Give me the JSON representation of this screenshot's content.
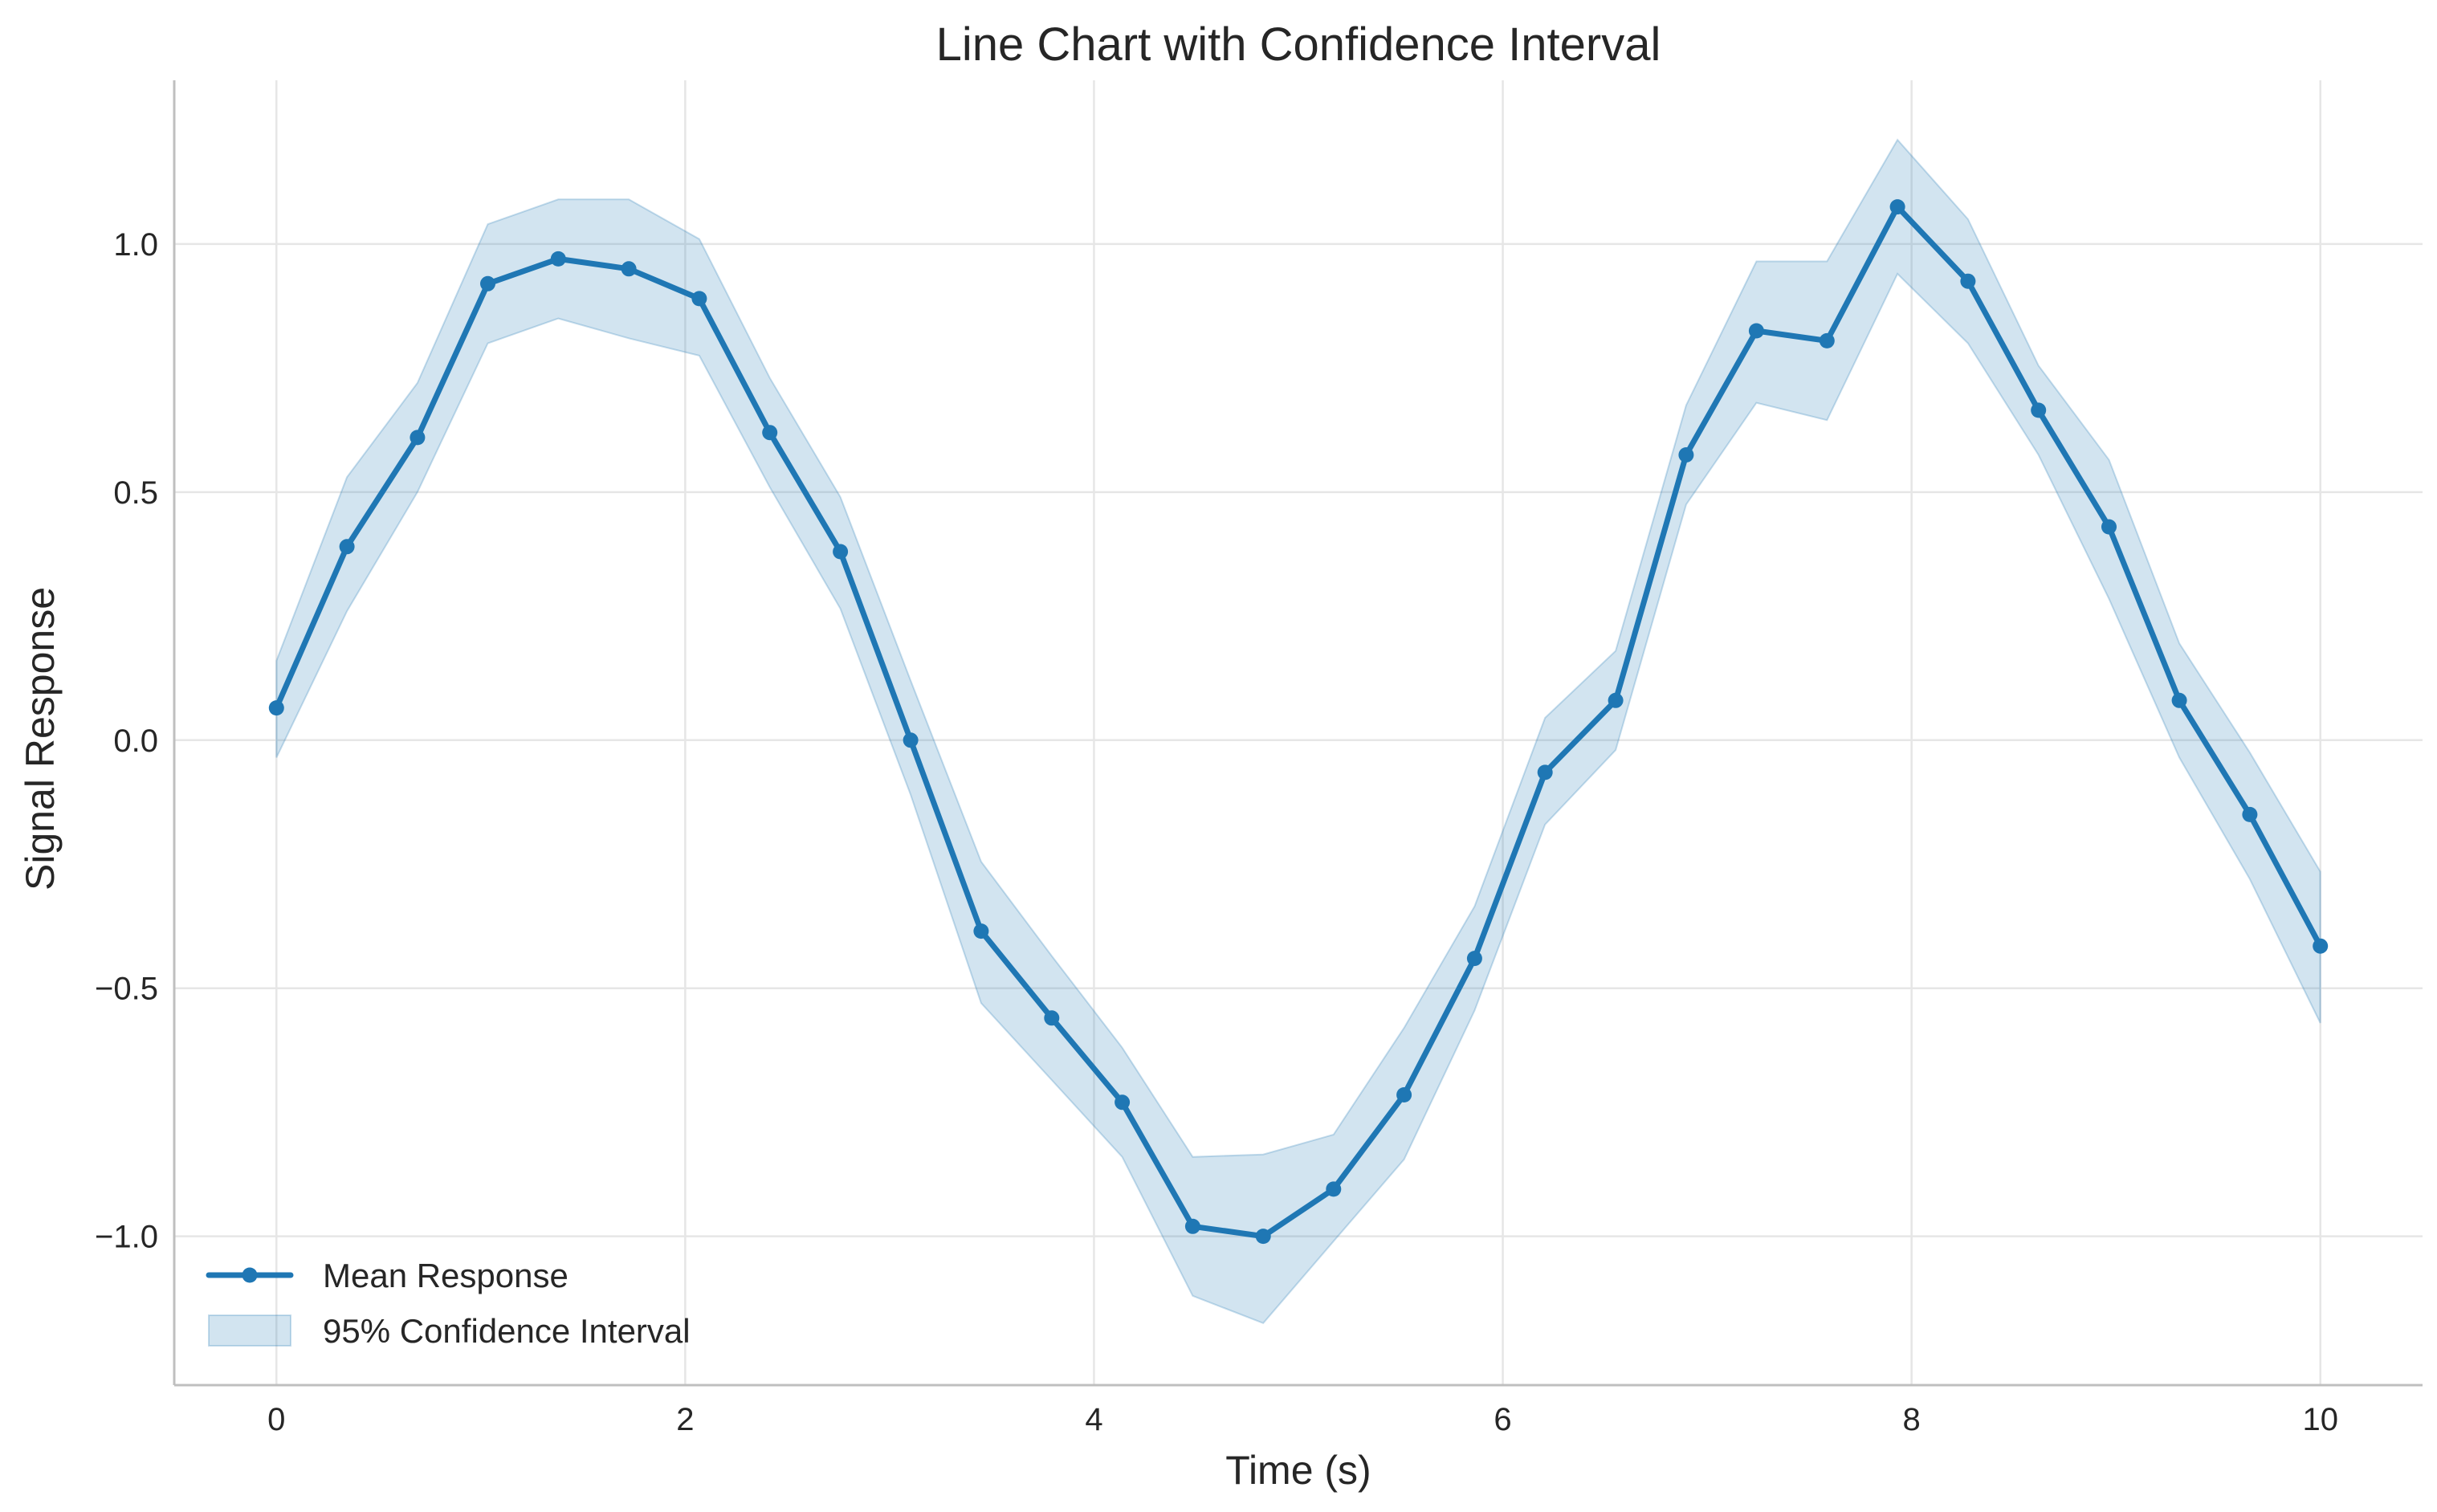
{
  "chart_data": {
    "type": "line",
    "title": "Line Chart with Confidence Interval",
    "xlabel": "Time (s)",
    "ylabel": "Signal Response",
    "xlim": [
      -0.5,
      10.5
    ],
    "ylim": [
      -1.3,
      1.33
    ],
    "xticks": [
      0,
      2,
      4,
      6,
      8,
      10
    ],
    "xtick_labels": [
      "0",
      "2",
      "4",
      "6",
      "8",
      "10"
    ],
    "yticks": [
      -1.0,
      -0.5,
      0.0,
      0.5,
      1.0
    ],
    "ytick_labels": [
      "−1.0",
      "−0.5",
      "0.0",
      "0.5",
      "1.0"
    ],
    "grid": true,
    "legend_position": "lower-left",
    "x": [
      0,
      0.345,
      0.69,
      1.034,
      1.379,
      1.724,
      2.069,
      2.414,
      2.759,
      3.103,
      3.448,
      3.793,
      4.138,
      4.483,
      4.828,
      5.172,
      5.517,
      5.862,
      6.207,
      6.552,
      6.897,
      7.241,
      7.586,
      7.931,
      8.276,
      8.621,
      8.966,
      9.31,
      9.655,
      10.0
    ],
    "series": [
      {
        "name": "Mean Response",
        "color": "#1f77b4",
        "marker": "circle",
        "values": [
          0.065,
          0.39,
          0.61,
          0.92,
          0.97,
          0.95,
          0.89,
          0.62,
          0.38,
          0.0,
          -0.385,
          -0.56,
          -0.73,
          -0.98,
          -1.0,
          -0.905,
          -0.715,
          -0.44,
          -0.065,
          0.08,
          0.575,
          0.825,
          0.805,
          1.075,
          0.925,
          0.665,
          0.43,
          0.08,
          -0.15,
          -0.415
        ]
      }
    ],
    "confidence_interval": {
      "name": "95% Confidence Interval",
      "color": "#1f77b4",
      "opacity": 0.2,
      "lower": [
        -0.035,
        0.26,
        0.5,
        0.8,
        0.85,
        0.81,
        0.775,
        0.51,
        0.265,
        -0.11,
        -0.53,
        -0.685,
        -0.84,
        -1.12,
        -1.175,
        -1.01,
        -0.845,
        -0.545,
        -0.17,
        -0.02,
        0.475,
        0.68,
        0.645,
        0.94,
        0.8,
        0.575,
        0.285,
        -0.035,
        -0.28,
        -0.57
      ],
      "upper": [
        0.16,
        0.53,
        0.72,
        1.04,
        1.09,
        1.09,
        1.01,
        0.73,
        0.49,
        0.12,
        -0.245,
        -0.435,
        -0.62,
        -0.84,
        -0.835,
        -0.795,
        -0.58,
        -0.335,
        0.045,
        0.18,
        0.675,
        0.965,
        0.965,
        1.21,
        1.05,
        0.755,
        0.565,
        0.195,
        -0.025,
        -0.265
      ]
    }
  }
}
